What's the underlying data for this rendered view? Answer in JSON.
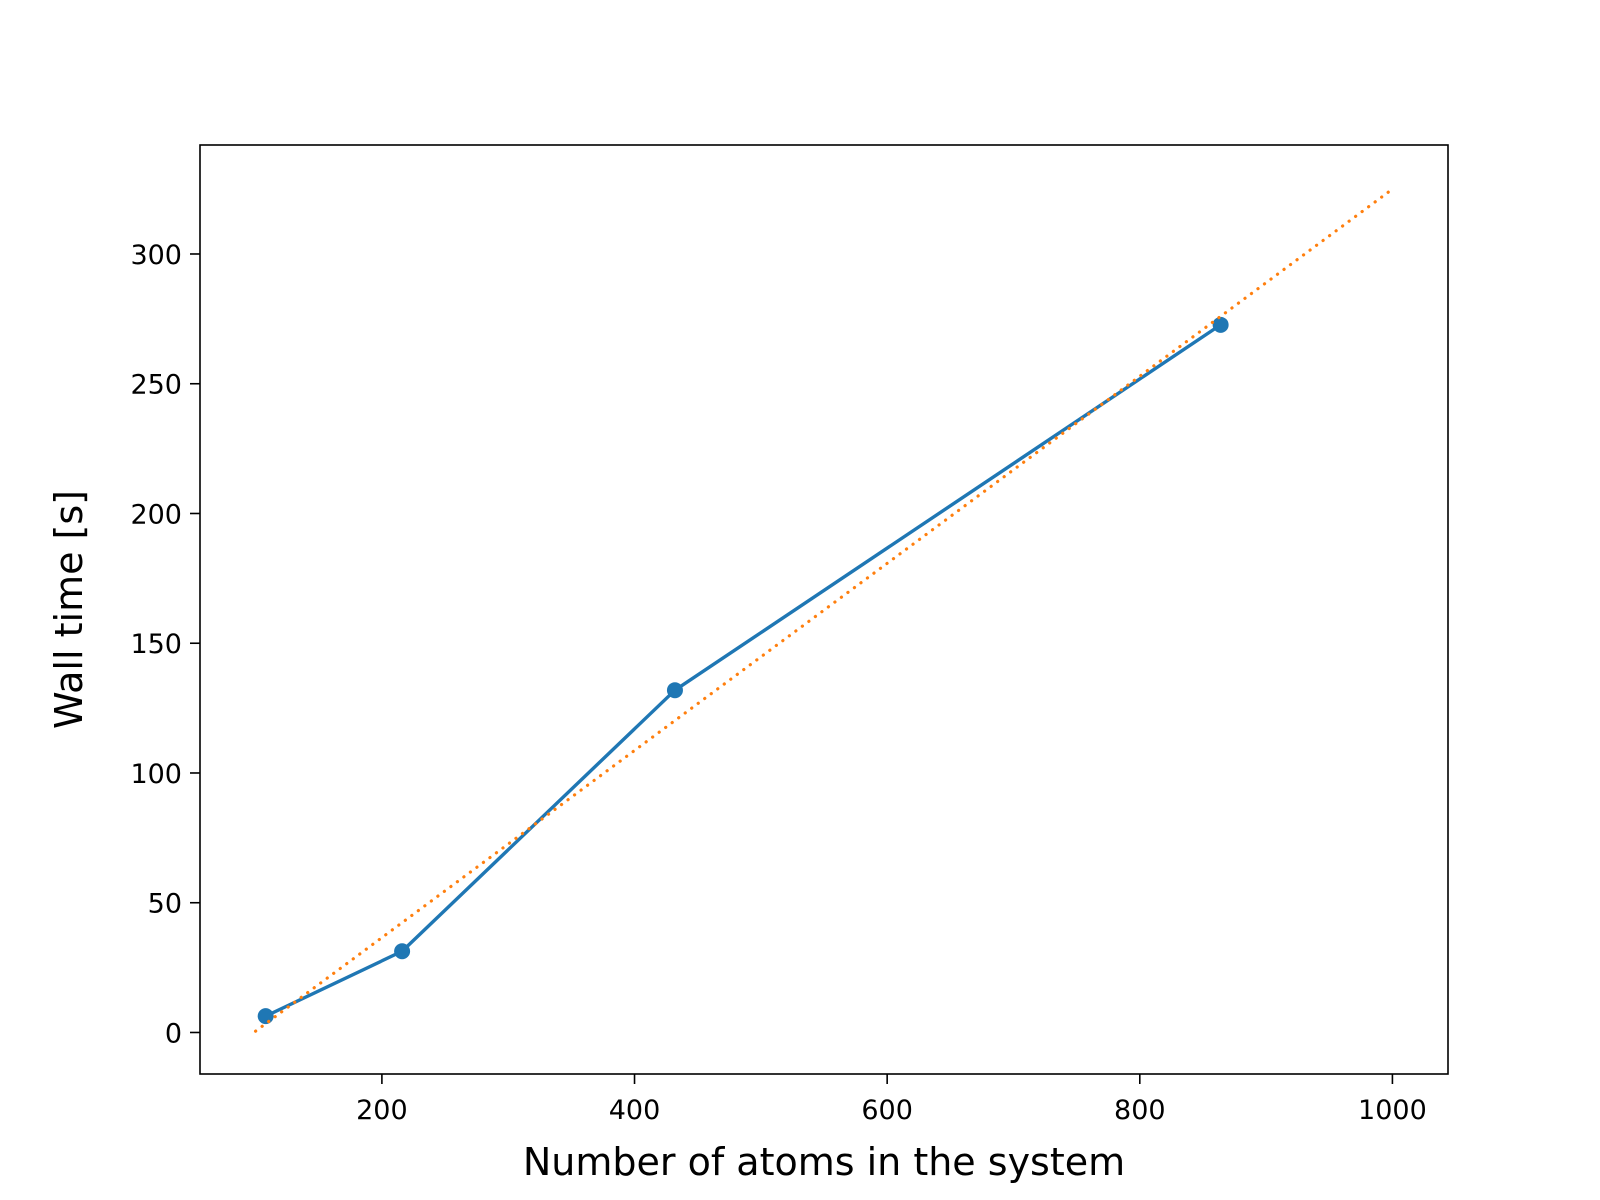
{
  "chart_data": {
    "type": "line",
    "title": "",
    "xlabel": "Number of atoms in the system",
    "ylabel": "Wall time [s]",
    "xlim": [
      56,
      1044
    ],
    "ylim": [
      -16,
      342
    ],
    "x_ticks": [
      200,
      400,
      600,
      800,
      1000
    ],
    "y_ticks": [
      0,
      50,
      100,
      150,
      200,
      250,
      300
    ],
    "grid": false,
    "legend": "none",
    "series": [
      {
        "style": "solid",
        "marker": "circle",
        "color": "#1f77b4",
        "x": [
          108,
          216,
          432,
          864
        ],
        "y": [
          6.3,
          31.3,
          131.9,
          272.7
        ]
      },
      {
        "style": "dotted",
        "marker": "none",
        "color": "#ff7f0e",
        "x": [
          100,
          1000
        ],
        "y": [
          0.5,
          325
        ]
      }
    ]
  }
}
